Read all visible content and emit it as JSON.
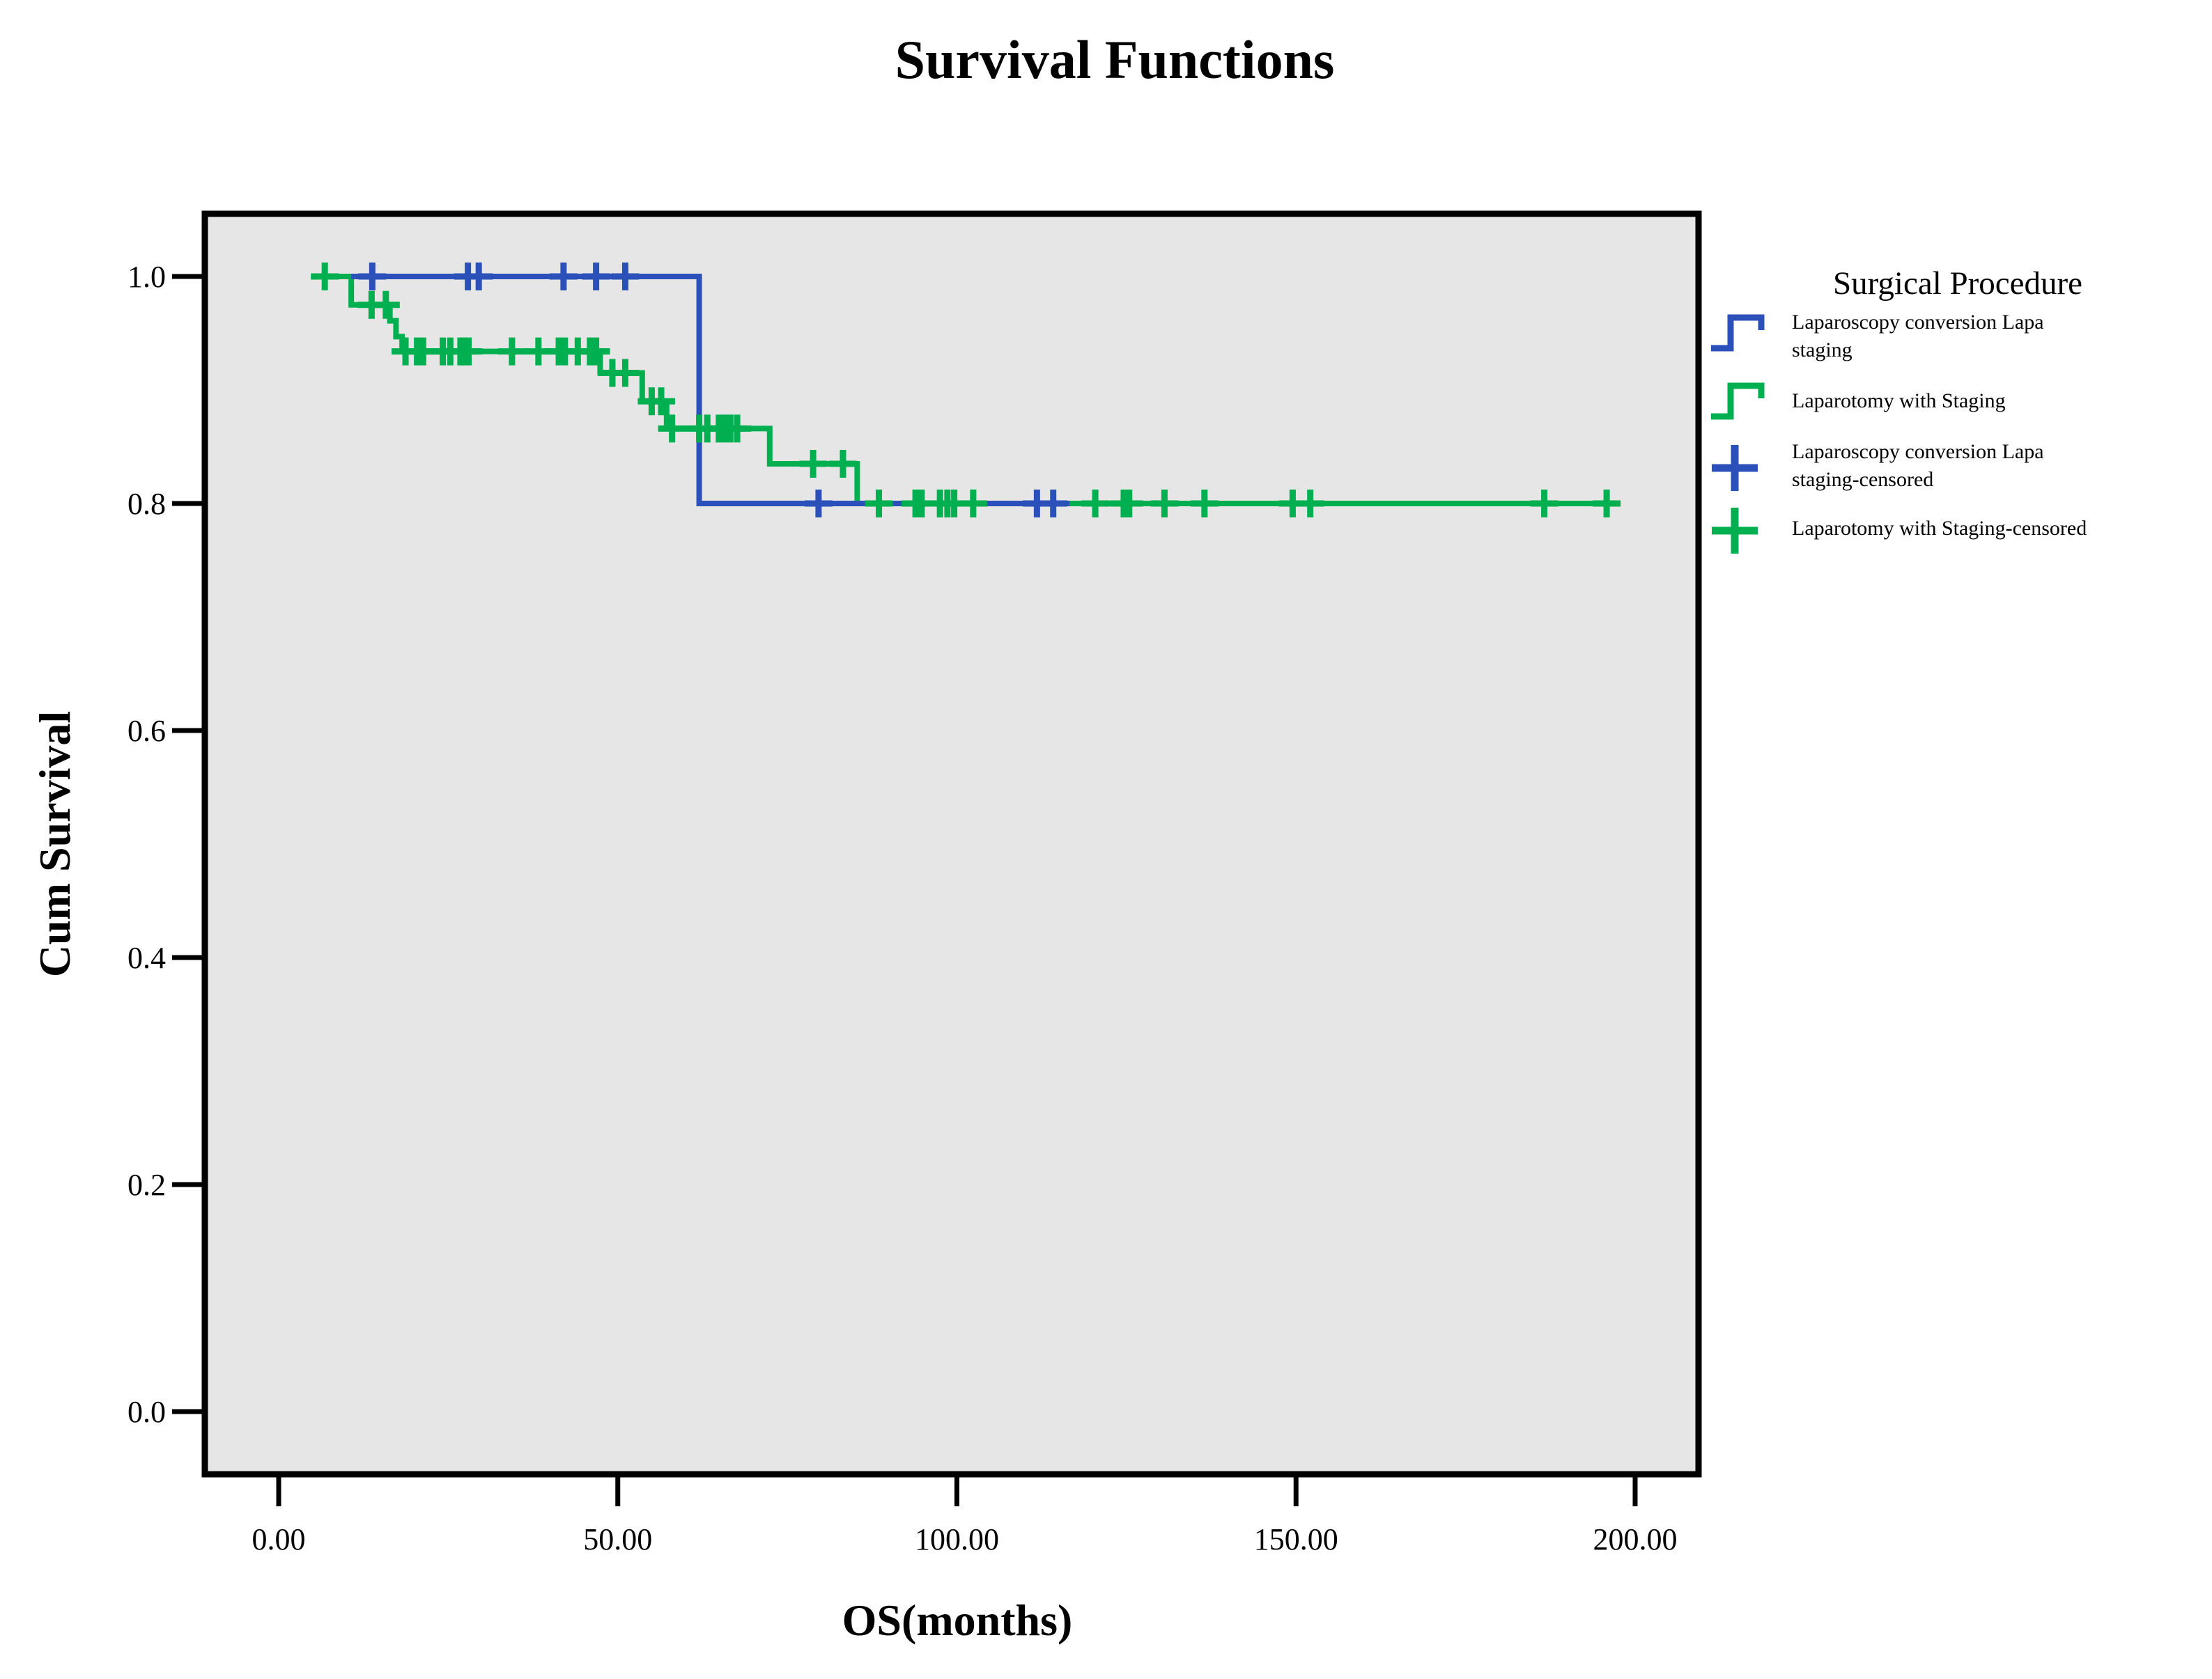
{
  "chart": {
    "title": "Survival Functions",
    "xlabel": "OS(months)",
    "ylabel": "Cum Survival"
  },
  "colors": {
    "laparoscopy_blue": "#2B50B9",
    "laparotomy_green": "#00AF50",
    "plot_background": "#E6E6E6",
    "frame": "#000000"
  },
  "legend": {
    "title": "Surgical Procedure",
    "items": [
      {
        "marker": "blue-step-line",
        "lines": [
          "Laparoscopy conversion Lapa",
          "staging"
        ]
      },
      {
        "marker": "green-step-line",
        "lines": [
          "Laparotomy with Staging"
        ]
      },
      {
        "marker": "blue-plus",
        "lines": [
          "Laparoscopy conversion Lapa",
          "staging-censored"
        ]
      },
      {
        "marker": "green-plus",
        "lines": [
          "Laparotomy with Staging-censored"
        ]
      }
    ]
  },
  "chart_data": {
    "type": "line",
    "subtype": "kaplan-meier-step",
    "title": "Survival Functions",
    "xlabel": "OS(months)",
    "ylabel": "Cum Survival",
    "xlim": [
      0,
      200
    ],
    "ylim": [
      0.0,
      1.0
    ],
    "grid": false,
    "legend_position": "right",
    "x_ticks": [
      {
        "value": 0,
        "label": "0.00"
      },
      {
        "value": 50,
        "label": "50.00"
      },
      {
        "value": 100,
        "label": "100.00"
      },
      {
        "value": 150,
        "label": "150.00"
      },
      {
        "value": 200,
        "label": "200.00"
      }
    ],
    "y_ticks": [
      {
        "value": 0.0,
        "label": "0.0"
      },
      {
        "value": 0.2,
        "label": "0.2"
      },
      {
        "value": 0.4,
        "label": "0.4"
      },
      {
        "value": 0.6,
        "label": "0.6"
      },
      {
        "value": 0.8,
        "label": "0.8"
      },
      {
        "value": 1.0,
        "label": "1.0"
      }
    ],
    "series": [
      {
        "name": "Laparoscopy conversion Lapa staging",
        "color": "#2B50B9",
        "steps": [
          [
            10.7,
            1.0
          ],
          [
            62.0,
            0.8
          ],
          [
            116.6,
            0.8
          ]
        ],
        "censored": [
          [
            13.8,
            1.0
          ],
          [
            27.9,
            1.0
          ],
          [
            29.5,
            1.0
          ],
          [
            42.0,
            1.0
          ],
          [
            46.8,
            1.0
          ],
          [
            51.1,
            1.0
          ],
          [
            79.6,
            0.8
          ],
          [
            111.8,
            0.8
          ],
          [
            114.2,
            0.8
          ]
        ]
      },
      {
        "name": "Laparotomy with Staging",
        "color": "#00AF50",
        "steps": [
          [
            5.2,
            1.0
          ],
          [
            10.7,
            0.975
          ],
          [
            16.4,
            0.961
          ],
          [
            17.3,
            0.947
          ],
          [
            18.2,
            0.934
          ],
          [
            47.4,
            0.915
          ],
          [
            53.6,
            0.89
          ],
          [
            57.2,
            0.866
          ],
          [
            72.4,
            0.835
          ],
          [
            85.3,
            0.8
          ],
          [
            197.5,
            0.8
          ]
        ],
        "censored": [
          [
            6.8,
            1.0
          ],
          [
            13.7,
            0.975
          ],
          [
            15.8,
            0.975
          ],
          [
            18.7,
            0.934
          ],
          [
            20.4,
            0.934
          ],
          [
            21.3,
            0.934
          ],
          [
            24.2,
            0.934
          ],
          [
            25.3,
            0.934
          ],
          [
            26.8,
            0.934
          ],
          [
            27.4,
            0.934
          ],
          [
            28.0,
            0.934
          ],
          [
            34.4,
            0.934
          ],
          [
            38.3,
            0.934
          ],
          [
            41.3,
            0.934
          ],
          [
            42.2,
            0.934
          ],
          [
            44.1,
            0.934
          ],
          [
            45.9,
            0.934
          ],
          [
            46.8,
            0.934
          ],
          [
            49.2,
            0.915
          ],
          [
            51.1,
            0.915
          ],
          [
            55.0,
            0.89
          ],
          [
            56.4,
            0.89
          ],
          [
            58.0,
            0.866
          ],
          [
            62.0,
            0.866
          ],
          [
            63.2,
            0.866
          ],
          [
            64.9,
            0.866
          ],
          [
            65.7,
            0.866
          ],
          [
            66.6,
            0.866
          ],
          [
            67.6,
            0.866
          ],
          [
            78.8,
            0.835
          ],
          [
            83.2,
            0.835
          ],
          [
            88.5,
            0.8
          ],
          [
            93.9,
            0.8
          ],
          [
            94.8,
            0.8
          ],
          [
            97.5,
            0.8
          ],
          [
            98.6,
            0.8
          ],
          [
            99.6,
            0.8
          ],
          [
            102.4,
            0.8
          ],
          [
            120.4,
            0.8
          ],
          [
            124.6,
            0.8
          ],
          [
            125.4,
            0.8
          ],
          [
            130.6,
            0.8
          ],
          [
            136.5,
            0.8
          ],
          [
            149.5,
            0.8
          ],
          [
            152.1,
            0.8
          ],
          [
            186.6,
            0.8
          ],
          [
            195.8,
            0.8
          ]
        ]
      }
    ]
  }
}
